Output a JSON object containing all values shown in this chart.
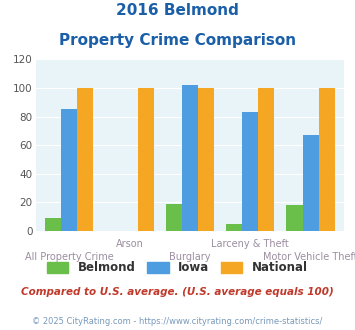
{
  "title_line1": "2016 Belmond",
  "title_line2": "Property Crime Comparison",
  "categories": [
    "All Property Crime",
    "Arson",
    "Burglary",
    "Larceny & Theft",
    "Motor Vehicle Theft"
  ],
  "belmond": [
    9,
    0,
    19,
    5,
    18
  ],
  "iowa": [
    85,
    0,
    102,
    83,
    67
  ],
  "national": [
    100,
    100,
    100,
    100,
    100
  ],
  "belmond_color": "#6abf4b",
  "iowa_color": "#4d9de0",
  "national_color": "#f5a623",
  "ylim": [
    0,
    120
  ],
  "yticks": [
    0,
    20,
    40,
    60,
    80,
    100,
    120
  ],
  "xlabel_top": [
    "",
    "Arson",
    "",
    "Larceny & Theft",
    ""
  ],
  "xlabel_bottom": [
    "All Property Crime",
    "",
    "Burglary",
    "",
    "Motor Vehicle Theft"
  ],
  "footnote1": "Compared to U.S. average. (U.S. average equals 100)",
  "footnote2": "© 2025 CityRating.com - https://www.cityrating.com/crime-statistics/",
  "bg_color": "#e8f4f8",
  "title_color": "#1a5fa8",
  "xlabel_color": "#9b8ea0",
  "legend_labels": [
    "Belmond",
    "Iowa",
    "National"
  ],
  "footnote1_color": "#c0392b",
  "footnote2_color": "#7799bb"
}
